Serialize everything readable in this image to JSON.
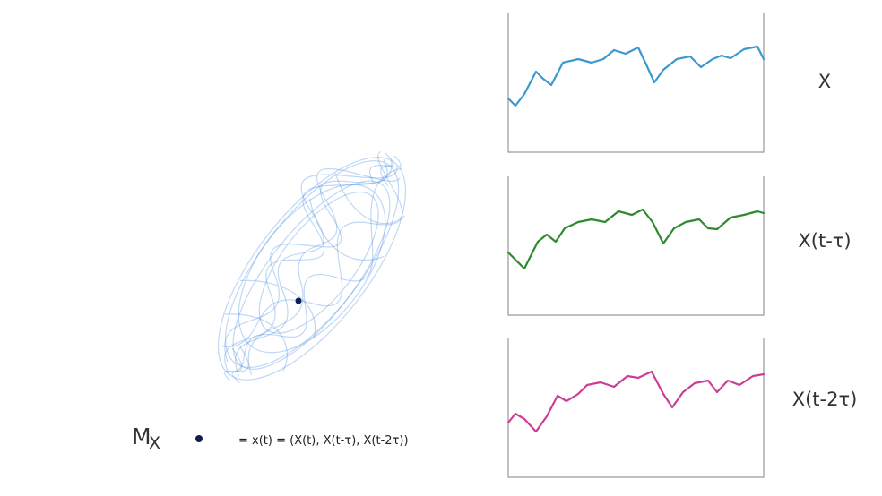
{
  "manifold": {
    "label": "M",
    "subscript": "X"
  },
  "equation": "= x(t) = (X(t), X(t-τ), X(t-2τ))",
  "panels": [
    {
      "label": "X"
    },
    {
      "label": "X(t-τ)"
    },
    {
      "label": "X(t-2τ)"
    }
  ]
}
